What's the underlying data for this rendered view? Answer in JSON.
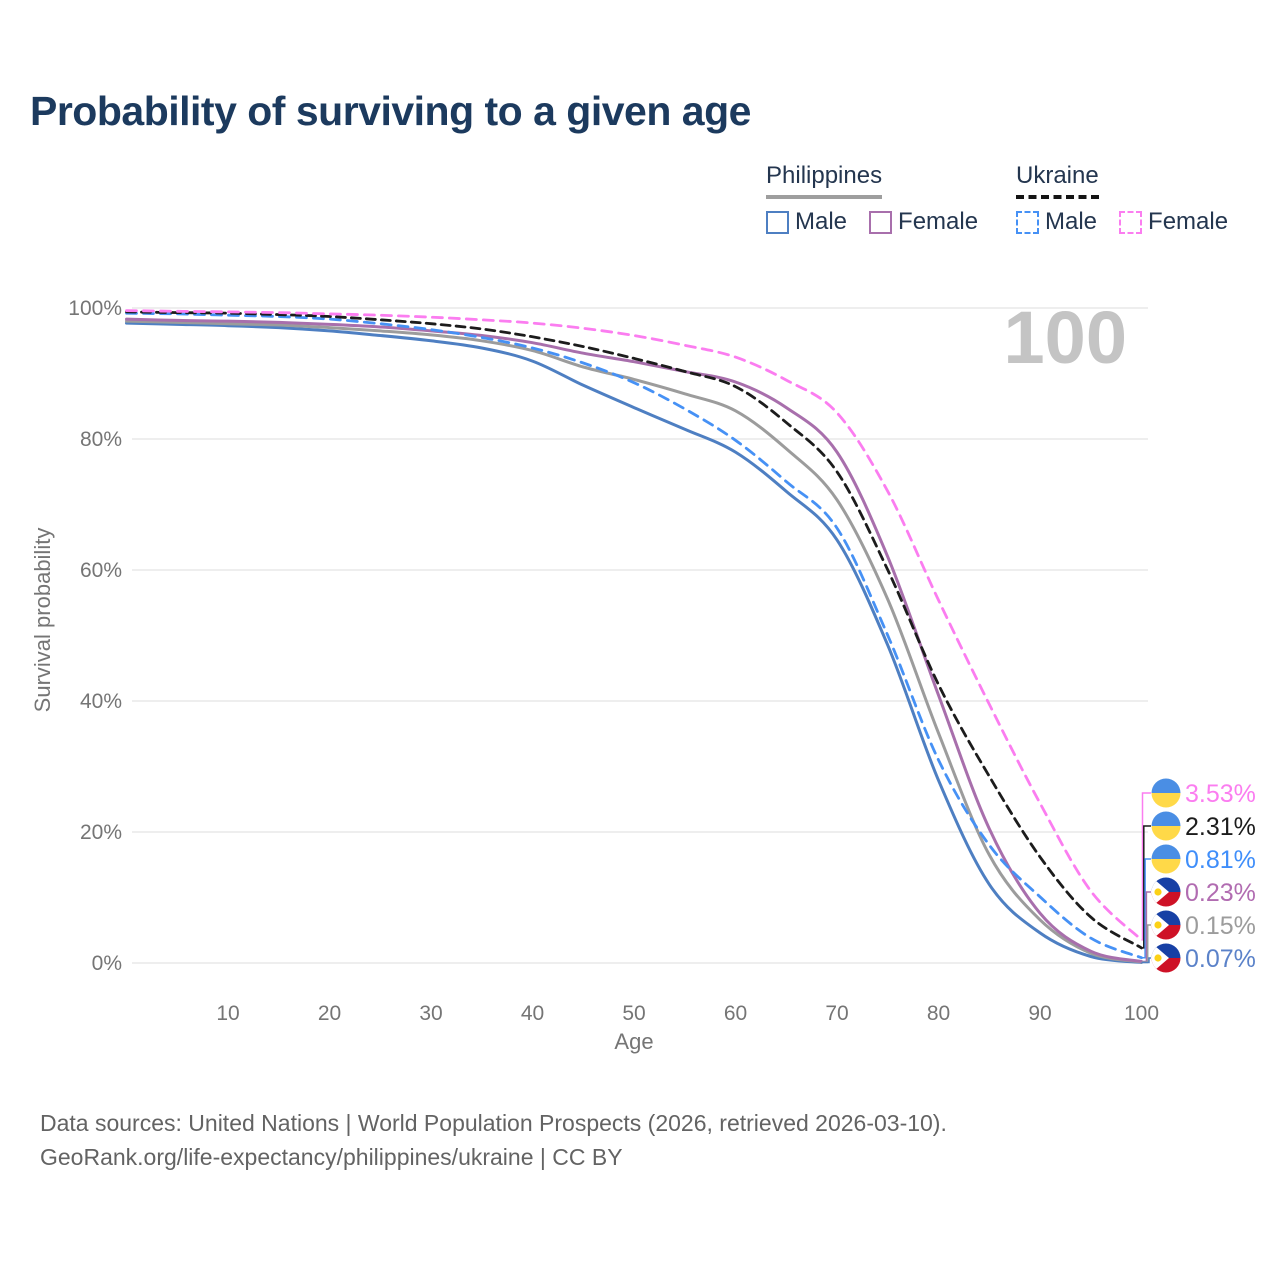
{
  "title": "Probability of surviving to a given age",
  "legend": {
    "groups": [
      {
        "title": "Philippines",
        "underline_color": "#9e9e9e",
        "underline_style": "solid",
        "items": [
          {
            "label": "Male",
            "color": "#4e7fc2",
            "dashed": false
          },
          {
            "label": "Female",
            "color": "#a86fac",
            "dashed": false
          }
        ]
      },
      {
        "title": "Ukraine",
        "underline_color": "#141414",
        "underline_style": "dashed",
        "items": [
          {
            "label": "Male",
            "color": "#4691f5",
            "dashed": true
          },
          {
            "label": "Female",
            "color": "#fb7df0",
            "dashed": true
          }
        ]
      }
    ]
  },
  "watermark": "100",
  "chart_data": {
    "type": "line",
    "title": "Probability of surviving to a given age",
    "xlabel": "Age",
    "ylabel": "Survival probability",
    "xlim": [
      0,
      100
    ],
    "ylim": [
      0,
      100
    ],
    "grid": true,
    "xticks": [
      10,
      20,
      30,
      40,
      50,
      60,
      70,
      80,
      90,
      100
    ],
    "yticks": [
      0,
      20,
      40,
      60,
      80,
      100
    ],
    "ytick_labels": [
      "0%",
      "20%",
      "40%",
      "60%",
      "80%",
      "100%"
    ],
    "x": [
      0,
      5,
      10,
      15,
      20,
      25,
      30,
      35,
      40,
      45,
      50,
      55,
      60,
      65,
      70,
      75,
      80,
      85,
      90,
      95,
      100
    ],
    "series": [
      {
        "name": "Ukraine Female",
        "country": "ukraine",
        "sex": "female",
        "color": "#fb7df0",
        "dash": "10 7",
        "end_label": "3.53%",
        "label_color": "#fb7df0",
        "values": [
          99.6,
          99.5,
          99.4,
          99.3,
          99.1,
          98.9,
          98.6,
          98.2,
          97.7,
          96.9,
          95.8,
          94.3,
          92.5,
          89.0,
          84.0,
          72.0,
          55.4,
          39.5,
          24.4,
          11.0,
          3.53
        ]
      },
      {
        "name": "Ukraine Both Sexes",
        "country": "ukraine",
        "sex": "both",
        "color": "#1c1c1c",
        "dash": "9 6",
        "end_label": "2.31%",
        "label_color": "#1c1c1c",
        "values": [
          99.4,
          99.3,
          99.2,
          99.0,
          98.7,
          98.2,
          97.6,
          96.8,
          95.6,
          94.1,
          92.3,
          90.3,
          88.0,
          82.5,
          75.0,
          60.0,
          42.5,
          28.5,
          16.2,
          7.0,
          2.31
        ]
      },
      {
        "name": "Ukraine Male",
        "country": "ukraine",
        "sex": "male",
        "color": "#4691f5",
        "dash": "10 7",
        "end_label": "0.81%",
        "label_color": "#3f8efa",
        "values": [
          99.2,
          99.1,
          98.9,
          98.7,
          98.3,
          97.6,
          96.7,
          95.5,
          93.9,
          91.6,
          88.6,
          84.6,
          79.8,
          73.5,
          66.4,
          50.0,
          31.0,
          18.0,
          10.1,
          3.8,
          0.81
        ]
      },
      {
        "name": "Philippines Female",
        "country": "philippines",
        "sex": "female",
        "color": "#a86fac",
        "dash": null,
        "end_label": "0.23%",
        "label_color": "#b16cb1",
        "values": [
          98.3,
          98.1,
          98.0,
          97.8,
          97.5,
          97.1,
          96.5,
          95.8,
          94.7,
          93.1,
          91.8,
          90.3,
          88.7,
          84.8,
          78.0,
          62.0,
          40.9,
          20.5,
          7.6,
          1.8,
          0.23
        ]
      },
      {
        "name": "Philippines Both Sexes",
        "country": "philippines",
        "sex": "both",
        "color": "#9c9c9c",
        "dash": null,
        "end_label": "0.15%",
        "label_color": "#9c9c9c",
        "values": [
          98.0,
          97.8,
          97.6,
          97.4,
          97.0,
          96.5,
          95.9,
          95.0,
          93.5,
          91.0,
          89.1,
          86.9,
          84.3,
          78.5,
          70.7,
          55.5,
          35.1,
          16.5,
          6.6,
          1.5,
          0.15
        ]
      },
      {
        "name": "Philippines Male",
        "country": "philippines",
        "sex": "male",
        "color": "#4e7fc2",
        "dash": null,
        "end_label": "0.07%",
        "label_color": "#5b82c9",
        "values": [
          97.7,
          97.5,
          97.3,
          97.0,
          96.5,
          95.8,
          95.0,
          93.9,
          91.9,
          88.2,
          84.8,
          81.5,
          78.0,
          72.0,
          64.6,
          48.5,
          27.9,
          12.0,
          4.6,
          1.0,
          0.07
        ]
      }
    ],
    "flag_colors": {
      "ukraine_blue": "#4a8ee4",
      "ukraine_yellow": "#ffd948",
      "ph_blue": "#1740a5",
      "ph_red": "#ce1126",
      "ph_white": "#ffffff",
      "ph_sun": "#fcd116"
    },
    "style": {
      "gridline_color": "#e8e8e8",
      "axis_text_color": "#757575",
      "watermark_color": "#c4c4c4"
    }
  },
  "footer": {
    "line1": "Data sources: United Nations | World Population Prospects (2026, retrieved 2026-03-10).",
    "line2": "GeoRank.org/life-expectancy/philippines/ukraine | CC BY"
  }
}
